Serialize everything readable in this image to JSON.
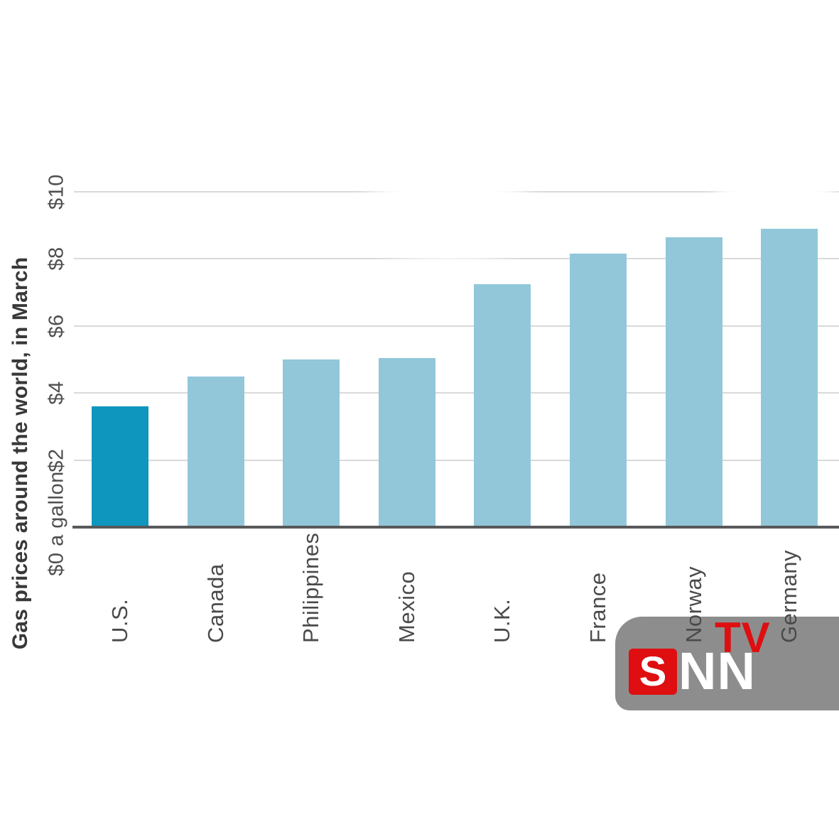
{
  "chart_data": {
    "type": "bar",
    "title": "Gas prices around the world, in March",
    "categories": [
      "U.S.",
      "Canada",
      "Philippines",
      "Mexico",
      "U.K.",
      "France",
      "Norway",
      "Germany"
    ],
    "values": [
      3.6,
      4.5,
      5.0,
      5.05,
      7.25,
      8.15,
      8.65,
      8.9
    ],
    "ylim": [
      0,
      10
    ],
    "yticks": [
      {
        "value": 0,
        "label": "$0 a gallon"
      },
      {
        "value": 2,
        "label": "$2"
      },
      {
        "value": 4,
        "label": "$4"
      },
      {
        "value": 6,
        "label": "$6"
      },
      {
        "value": 8,
        "label": "$8"
      },
      {
        "value": 10,
        "label": "$10"
      }
    ],
    "grid": "horizontal",
    "legend": "none",
    "xlabel": "",
    "ylabel": "",
    "highlight": {
      "index": 0,
      "color": "#0f96be"
    },
    "bar_color": "#92c7d9"
  },
  "colors": {
    "gridline": "#d9d9d9",
    "axis_line": "#58595b",
    "title_text": "#383838",
    "tick_text": "#4f4f4f",
    "logo_gray": "#8d8d8d",
    "logo_red": "#de0e11",
    "logo_white": "#ffffff"
  },
  "logo": {
    "s": "S",
    "nn": "NN",
    "tv": "TV"
  }
}
